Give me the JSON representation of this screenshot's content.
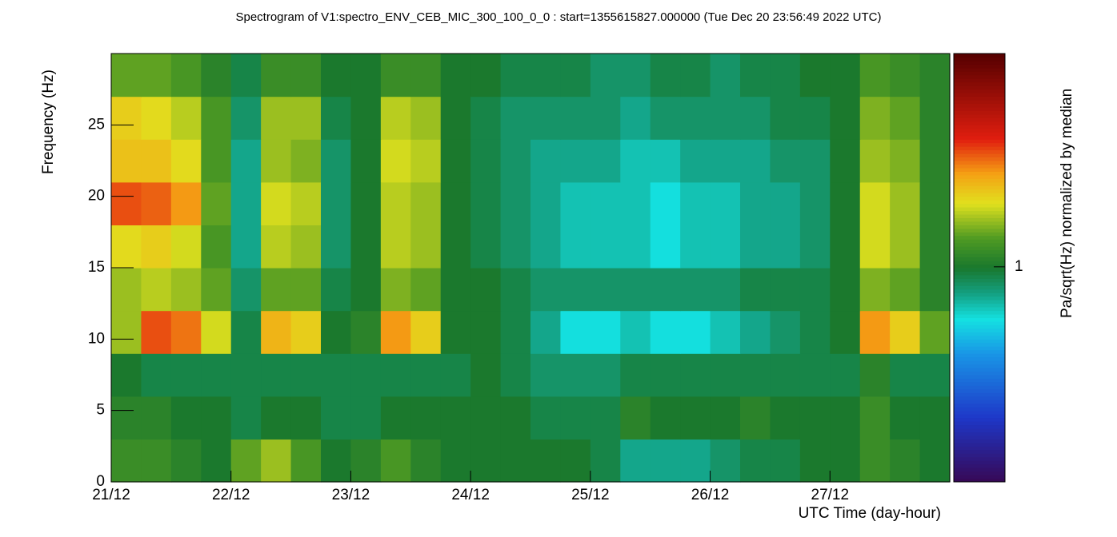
{
  "chart_data": {
    "type": "heatmap",
    "title": "Spectrogram of V1:spectro_ENV_CEB_MIC_300_100_0_0 : start=1355615827.000000 (Tue Dec 20 23:56:49 2022 UTC)",
    "xlabel": "UTC Time (day-hour)",
    "ylabel": "Frequency (Hz)",
    "zlabel": "Pa/sqrt(Hz) normalized by median",
    "xlim": [
      0,
      7
    ],
    "ylim": [
      0,
      30
    ],
    "zlim": [
      0.3,
      3.3
    ],
    "zlog": true,
    "xticks": [
      {
        "value": 0,
        "label": "21/12"
      },
      {
        "value": 1,
        "label": "22/12"
      },
      {
        "value": 2,
        "label": "23/12"
      },
      {
        "value": 3,
        "label": "24/12"
      },
      {
        "value": 4,
        "label": "25/12"
      },
      {
        "value": 5,
        "label": "26/12"
      },
      {
        "value": 6,
        "label": "27/12"
      }
    ],
    "yticks": [
      0,
      5,
      10,
      15,
      20,
      25
    ],
    "zticks": [
      1
    ],
    "xbins": [
      0,
      0.25,
      0.5,
      0.75,
      1,
      1.25,
      1.5,
      1.75,
      2,
      2.25,
      2.5,
      2.75,
      3,
      3.25,
      3.5,
      3.75,
      4,
      4.25,
      4.5,
      4.75,
      5,
      5.25,
      5.5,
      5.75,
      6,
      6.25,
      6.5,
      6.75,
      7
    ],
    "ybins": [
      0,
      3,
      6,
      9,
      12,
      15,
      18,
      21,
      24,
      27,
      30
    ],
    "z": [
      [
        1.1,
        1.1,
        1.05,
        1.0,
        1.2,
        1.3,
        1.15,
        1.0,
        1.05,
        1.15,
        1.05,
        1.0,
        1.0,
        1.0,
        1.0,
        1.0,
        0.95,
        0.85,
        0.85,
        0.85,
        0.9,
        0.95,
        0.95,
        1.0,
        1.0,
        1.1,
        1.05,
        1.0
      ],
      [
        1.05,
        1.05,
        1.0,
        1.0,
        0.95,
        1.0,
        1.0,
        0.95,
        0.95,
        1.0,
        1.0,
        1.0,
        1.0,
        1.0,
        0.95,
        0.95,
        0.95,
        1.05,
        1.0,
        1.0,
        1.0,
        1.05,
        1.0,
        1.0,
        1.0,
        1.1,
        1.0,
        1.0
      ],
      [
        1.0,
        0.95,
        0.95,
        0.95,
        0.95,
        0.95,
        0.95,
        0.95,
        0.95,
        0.95,
        0.95,
        0.95,
        1.0,
        0.95,
        0.9,
        0.9,
        0.9,
        0.95,
        0.95,
        0.95,
        0.95,
        0.95,
        0.95,
        0.95,
        0.95,
        1.05,
        0.95,
        0.95
      ],
      [
        1.3,
        1.9,
        1.8,
        1.4,
        0.95,
        1.6,
        1.5,
        1.0,
        1.05,
        1.7,
        1.5,
        1.0,
        1.0,
        0.95,
        0.85,
        0.75,
        0.75,
        0.8,
        0.75,
        0.75,
        0.8,
        0.85,
        0.9,
        0.95,
        1.0,
        1.7,
        1.5,
        1.2
      ],
      [
        1.3,
        1.35,
        1.3,
        1.2,
        0.9,
        1.2,
        1.2,
        0.95,
        1.0,
        1.25,
        1.2,
        1.0,
        1.0,
        0.95,
        0.9,
        0.9,
        0.9,
        0.9,
        0.9,
        0.9,
        0.9,
        0.95,
        0.95,
        0.95,
        1.0,
        1.25,
        1.2,
        1.05
      ],
      [
        1.45,
        1.5,
        1.4,
        1.15,
        0.85,
        1.35,
        1.3,
        0.9,
        1.0,
        1.35,
        1.3,
        1.0,
        0.95,
        0.9,
        0.85,
        0.8,
        0.8,
        0.8,
        0.75,
        0.8,
        0.8,
        0.85,
        0.85,
        0.9,
        1.0,
        1.4,
        1.3,
        1.05
      ],
      [
        1.9,
        1.85,
        1.7,
        1.2,
        0.85,
        1.4,
        1.35,
        0.9,
        1.0,
        1.35,
        1.3,
        1.0,
        0.95,
        0.9,
        0.85,
        0.8,
        0.8,
        0.8,
        0.75,
        0.8,
        0.8,
        0.85,
        0.85,
        0.9,
        1.0,
        1.4,
        1.3,
        1.05
      ],
      [
        1.55,
        1.55,
        1.45,
        1.15,
        0.85,
        1.3,
        1.25,
        0.9,
        1.0,
        1.4,
        1.35,
        1.0,
        0.95,
        0.9,
        0.85,
        0.85,
        0.85,
        0.8,
        0.8,
        0.85,
        0.85,
        0.85,
        0.9,
        0.9,
        1.0,
        1.3,
        1.25,
        1.05
      ],
      [
        1.5,
        1.45,
        1.35,
        1.15,
        0.9,
        1.3,
        1.3,
        0.95,
        1.0,
        1.35,
        1.3,
        1.0,
        0.95,
        0.9,
        0.9,
        0.9,
        0.9,
        0.85,
        0.9,
        0.9,
        0.9,
        0.9,
        0.95,
        0.95,
        1.0,
        1.25,
        1.2,
        1.05
      ],
      [
        1.2,
        1.2,
        1.15,
        1.05,
        0.95,
        1.1,
        1.1,
        1.0,
        1.0,
        1.1,
        1.1,
        1.0,
        1.0,
        0.95,
        0.95,
        0.95,
        0.9,
        0.9,
        0.95,
        0.95,
        0.9,
        0.95,
        0.95,
        1.0,
        1.0,
        1.15,
        1.1,
        1.05
      ]
    ]
  }
}
